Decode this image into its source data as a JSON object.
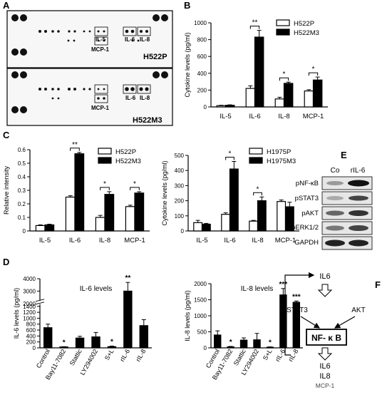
{
  "panel_labels": [
    "A",
    "B",
    "C",
    "D",
    "E",
    "F"
  ],
  "panel_a": {
    "array1": {
      "label": "H522P",
      "spots": [
        "IL-5",
        "IL-6",
        "IL-8",
        "MCP-1"
      ]
    },
    "array2": {
      "label": "H522M3",
      "spots": [
        "IL-5",
        "IL-6",
        "IL-8",
        "MCP-1"
      ]
    }
  },
  "panel_e": {
    "columns": [
      "Co",
      "rIL-6"
    ],
    "rows": [
      "pNF-κB",
      "pSTAT3",
      "pAKT",
      "pERK1/2",
      "GAPDH"
    ]
  },
  "panel_f": {
    "top": "IL6",
    "left": "STAT3",
    "right": "AKT",
    "center": "NF- κ B",
    "out1": "IL6",
    "out2": "IL8",
    "out3": "MCP-1"
  },
  "chart_data": [
    {
      "id": "B",
      "type": "bar",
      "categories": [
        "IL-5",
        "IL-6",
        "IL-8",
        "MCP-1"
      ],
      "series": [
        {
          "name": "H522P",
          "values": [
            15,
            220,
            95,
            190
          ],
          "err": [
            5,
            30,
            20,
            15
          ]
        },
        {
          "name": "H522M3",
          "values": [
            20,
            830,
            280,
            320
          ],
          "err": [
            5,
            80,
            15,
            35
          ]
        }
      ],
      "ylabel": "Cytokine levels (pg/ml)",
      "yticks": [
        0,
        200,
        400,
        600,
        800,
        1000
      ],
      "ylim": [
        0,
        1000
      ],
      "sig": [
        {
          "cat": 1,
          "text": "**"
        },
        {
          "cat": 2,
          "text": "*"
        },
        {
          "cat": 3,
          "text": "*"
        }
      ],
      "legend": "top-right"
    },
    {
      "id": "C1",
      "type": "bar",
      "categories": [
        "IL-5",
        "IL-6",
        "IL-8",
        "MCP-1"
      ],
      "series": [
        {
          "name": "H522P",
          "values": [
            0.04,
            0.25,
            0.1,
            0.18
          ],
          "err": [
            0.005,
            0.01,
            0.015,
            0.01
          ]
        },
        {
          "name": "H522M3",
          "values": [
            0.045,
            0.57,
            0.27,
            0.28
          ],
          "err": [
            0.005,
            0.01,
            0.02,
            0.01
          ]
        }
      ],
      "ylabel": "Relative intensity",
      "yticks": [
        0.0,
        0.1,
        0.2,
        0.3,
        0.4,
        0.5,
        0.6
      ],
      "ylim": [
        0,
        0.6
      ],
      "sig": [
        {
          "cat": 1,
          "text": "**"
        },
        {
          "cat": 2,
          "text": "*"
        },
        {
          "cat": 3,
          "text": "*"
        }
      ],
      "legend": "top-right"
    },
    {
      "id": "C2",
      "type": "bar",
      "categories": [
        "IL-5",
        "IL-6",
        "IL-8",
        "MCP-1"
      ],
      "series": [
        {
          "name": "H1975P",
          "values": [
            55,
            110,
            65,
            195
          ],
          "err": [
            15,
            10,
            5,
            10
          ]
        },
        {
          "name": "H1975M3",
          "values": [
            45,
            410,
            200,
            160
          ],
          "err": [
            5,
            50,
            25,
            30
          ]
        }
      ],
      "ylabel": "Cytokine levels (pg/ml)",
      "yticks": [
        0,
        100,
        200,
        300,
        400,
        500
      ],
      "ylim": [
        0,
        500
      ],
      "sig": [
        {
          "cat": 1,
          "text": "*"
        },
        {
          "cat": 2,
          "text": "*"
        }
      ],
      "legend": "top-right"
    },
    {
      "id": "D1",
      "type": "bar",
      "title": "IL-6 levels",
      "categories": [
        "Control",
        "Bay11-7082",
        "Stattic",
        "LY294002",
        "S+L",
        "rIL-6",
        "rIL-8"
      ],
      "series": [
        {
          "values": [
            680,
            30,
            330,
            370,
            40,
            3000,
            750
          ],
          "err": [
            120,
            10,
            60,
            150,
            20,
            700,
            200
          ]
        }
      ],
      "ylabel": "IL-6 levels (pg/ml)",
      "yticks": [
        0,
        200,
        400,
        600,
        800,
        1000,
        1200,
        1400,
        2000,
        3000,
        4000
      ],
      "ylim": [
        0,
        4000
      ],
      "y_broken": true,
      "sig": [
        {
          "cat": 1,
          "text": "*"
        },
        {
          "cat": 4,
          "text": "*"
        },
        {
          "cat": 5,
          "text": "**"
        }
      ]
    },
    {
      "id": "D2",
      "type": "bar",
      "title": "IL-8 levels",
      "categories": [
        "Control",
        "Bay11-7082",
        "Stattic",
        "LY294002",
        "S+L",
        "rIL-6",
        "rIL-8"
      ],
      "series": [
        {
          "values": [
            400,
            30,
            240,
            250,
            20,
            1650,
            1420
          ],
          "err": [
            130,
            15,
            70,
            200,
            10,
            200,
            40
          ]
        }
      ],
      "ylabel": "IL-8 levels (pg/ml)",
      "yticks": [
        0,
        500,
        1000,
        1500,
        2000
      ],
      "ylim": [
        0,
        2000
      ],
      "sig": [
        {
          "cat": 1,
          "text": "*"
        },
        {
          "cat": 4,
          "text": "*"
        },
        {
          "cat": 5,
          "text": "***"
        },
        {
          "cat": 6,
          "text": "***"
        }
      ]
    }
  ]
}
